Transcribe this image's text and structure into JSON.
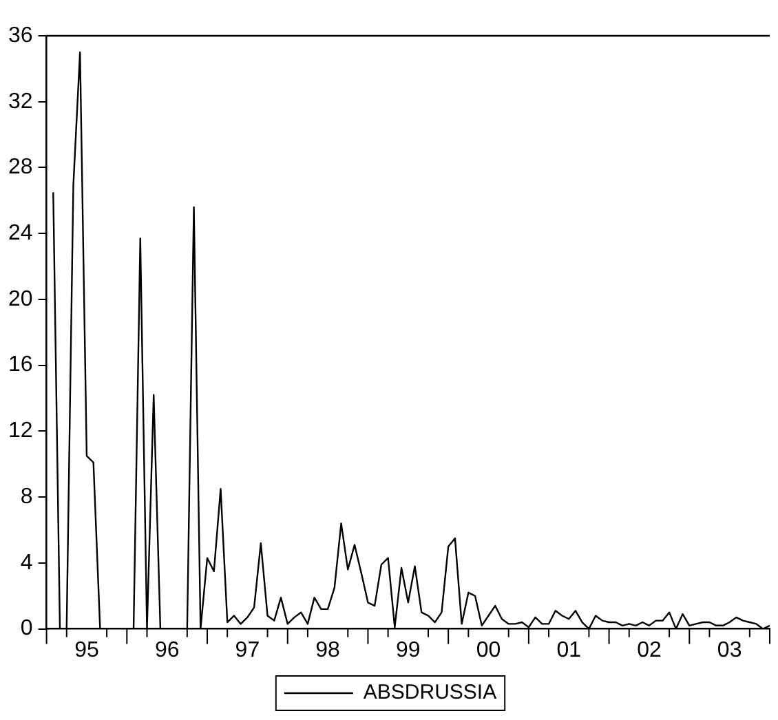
{
  "chart_data": {
    "type": "line",
    "x": [
      "1995-02",
      "1995-03",
      "1995-04",
      "1995-05",
      "1995-06",
      "1995-07",
      "1995-08",
      "1995-09",
      "1995-10",
      "1995-11",
      "1995-12",
      "1996-01",
      "1996-02",
      "1996-03",
      "1996-04",
      "1996-05",
      "1996-06",
      "1996-07",
      "1996-08",
      "1996-09",
      "1996-10",
      "1996-11",
      "1996-12",
      "1997-01",
      "1997-02",
      "1997-03",
      "1997-04",
      "1997-05",
      "1997-06",
      "1997-07",
      "1997-08",
      "1997-09",
      "1997-10",
      "1997-11",
      "1997-12",
      "1998-01",
      "1998-02",
      "1998-03",
      "1998-04",
      "1998-05",
      "1998-06",
      "1998-07",
      "1998-08",
      "1998-09",
      "1998-10",
      "1998-11",
      "1998-12",
      "1999-01",
      "1999-02",
      "1999-03",
      "1999-04",
      "1999-05",
      "1999-06",
      "1999-07",
      "1999-08",
      "1999-09",
      "1999-10",
      "1999-11",
      "1999-12",
      "2000-01",
      "2000-02",
      "2000-03",
      "2000-04",
      "2000-05",
      "2000-06",
      "2000-07",
      "2000-08",
      "2000-09",
      "2000-10",
      "2000-11",
      "2000-12",
      "2001-01",
      "2001-02",
      "2001-03",
      "2001-04",
      "2001-05",
      "2001-06",
      "2001-07",
      "2001-08",
      "2001-09",
      "2001-10",
      "2001-11",
      "2001-12",
      "2002-01",
      "2002-02",
      "2002-03",
      "2002-04",
      "2002-05",
      "2002-06",
      "2002-07",
      "2002-08",
      "2002-09",
      "2002-10",
      "2002-11",
      "2002-12",
      "2003-01",
      "2003-02",
      "2003-03",
      "2003-04",
      "2003-05",
      "2003-06",
      "2003-07",
      "2003-08",
      "2003-09",
      "2003-10",
      "2003-11",
      "2003-12",
      "2004-01"
    ],
    "series": [
      {
        "name": "ABSDRUSSIA",
        "color": "#000000",
        "values": [
          26.5,
          0,
          0,
          26.9,
          35,
          10.5,
          10.1,
          0,
          0,
          0,
          0,
          0,
          0,
          23.7,
          0,
          14.2,
          0,
          0,
          0,
          0,
          0,
          25.6,
          0,
          4.3,
          3.5,
          8.5,
          0.4,
          0.8,
          0.3,
          0.7,
          1.3,
          5.2,
          0.8,
          0.5,
          1.9,
          0.3,
          0.7,
          1.0,
          0.3,
          1.9,
          1.2,
          1.2,
          2.5,
          6.4,
          3.6,
          5.1,
          3.4,
          1.6,
          1.4,
          3.9,
          4.3,
          0.1,
          3.7,
          1.6,
          3.8,
          1.0,
          0.8,
          0.4,
          1.0,
          5.0,
          5.5,
          0.3,
          2.2,
          2.0,
          0.2,
          0.8,
          1.4,
          0.6,
          0.3,
          0.3,
          0.4,
          0.1,
          0.7,
          0.3,
          0.3,
          1.1,
          0.8,
          0.6,
          1.1,
          0.4,
          0,
          0.8,
          0.5,
          0.4,
          0.4,
          0.2,
          0.3,
          0.2,
          0.4,
          0.2,
          0.5,
          0.5,
          1.0,
          0,
          0.9,
          0.2,
          0.3,
          0.4,
          0.4,
          0.2,
          0.2,
          0.4,
          0.7,
          0.5,
          0.4,
          0.3,
          0,
          0.2
        ]
      }
    ],
    "xlim": [
      "1995-01",
      "2004-01"
    ],
    "xticks": [
      {
        "value": "1995-01",
        "label": null
      },
      {
        "value": "1995-04",
        "label": null
      },
      {
        "value": "1995-07",
        "label": "95"
      },
      {
        "value": "1995-10",
        "label": null
      },
      {
        "value": "1996-01",
        "label": null
      },
      {
        "value": "1996-04",
        "label": null
      },
      {
        "value": "1996-07",
        "label": "96"
      },
      {
        "value": "1996-10",
        "label": null
      },
      {
        "value": "1997-01",
        "label": null
      },
      {
        "value": "1997-04",
        "label": null
      },
      {
        "value": "1997-07",
        "label": "97"
      },
      {
        "value": "1997-10",
        "label": null
      },
      {
        "value": "1998-01",
        "label": null
      },
      {
        "value": "1998-04",
        "label": null
      },
      {
        "value": "1998-07",
        "label": "98"
      },
      {
        "value": "1998-10",
        "label": null
      },
      {
        "value": "1999-01",
        "label": null
      },
      {
        "value": "1999-04",
        "label": null
      },
      {
        "value": "1999-07",
        "label": "99"
      },
      {
        "value": "1999-10",
        "label": null
      },
      {
        "value": "2000-01",
        "label": null
      },
      {
        "value": "2000-04",
        "label": null
      },
      {
        "value": "2000-07",
        "label": "00"
      },
      {
        "value": "2000-10",
        "label": null
      },
      {
        "value": "2001-01",
        "label": null
      },
      {
        "value": "2001-04",
        "label": null
      },
      {
        "value": "2001-07",
        "label": "01"
      },
      {
        "value": "2001-10",
        "label": null
      },
      {
        "value": "2002-01",
        "label": null
      },
      {
        "value": "2002-04",
        "label": null
      },
      {
        "value": "2002-07",
        "label": "02"
      },
      {
        "value": "2002-10",
        "label": null
      },
      {
        "value": "2003-01",
        "label": null
      },
      {
        "value": "2003-04",
        "label": null
      },
      {
        "value": "2003-07",
        "label": "03"
      },
      {
        "value": "2003-10",
        "label": null
      },
      {
        "value": "2004-01",
        "label": null
      }
    ],
    "ylim": [
      0,
      36
    ],
    "yticks": [
      0,
      4,
      8,
      12,
      16,
      20,
      24,
      28,
      32,
      36
    ],
    "grid": false,
    "legend": "bottom",
    "marker": "none",
    "line_style": "solid"
  }
}
